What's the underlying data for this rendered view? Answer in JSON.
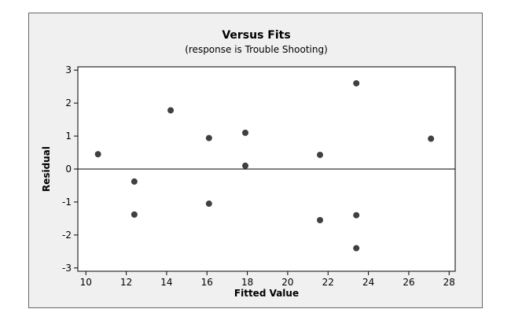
{
  "chart_data": {
    "type": "scatter",
    "title": "Versus Fits",
    "subtitle": "(response is Trouble Shooting)",
    "xlabel": "Fitted Value",
    "ylabel": "Residual",
    "xlim": [
      9.6,
      28.3
    ],
    "ylim": [
      -3.1,
      3.1
    ],
    "xticks": [
      10,
      12,
      14,
      16,
      18,
      20,
      22,
      24,
      26,
      28
    ],
    "yticks": [
      -3,
      -2,
      -1,
      0,
      1,
      2,
      3
    ],
    "reference_line_y": 0,
    "grid": false,
    "marker_color": "#404040",
    "points": [
      {
        "x": 10.6,
        "y": 0.45
      },
      {
        "x": 12.4,
        "y": -0.38
      },
      {
        "x": 12.4,
        "y": -1.38
      },
      {
        "x": 14.2,
        "y": 1.78
      },
      {
        "x": 16.1,
        "y": 0.94
      },
      {
        "x": 16.1,
        "y": -1.05
      },
      {
        "x": 17.9,
        "y": 1.1
      },
      {
        "x": 17.9,
        "y": 0.1
      },
      {
        "x": 21.6,
        "y": 0.43
      },
      {
        "x": 21.6,
        "y": -1.55
      },
      {
        "x": 23.4,
        "y": 2.6
      },
      {
        "x": 23.4,
        "y": -1.4
      },
      {
        "x": 23.4,
        "y": -2.4
      },
      {
        "x": 27.1,
        "y": 0.92
      }
    ]
  }
}
